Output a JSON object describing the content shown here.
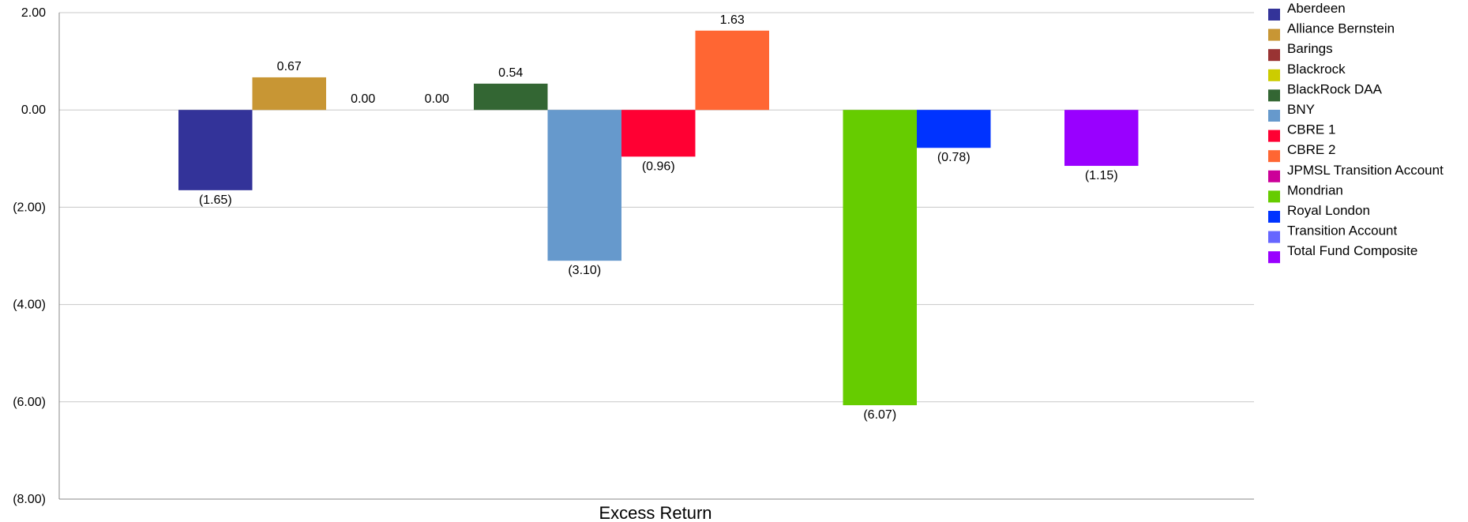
{
  "chart_data": {
    "type": "bar",
    "title": "",
    "xlabel": "Excess Return",
    "ylabel": "",
    "ylim": [
      -8,
      2
    ],
    "y_ticks": [
      2,
      0,
      -2,
      -4,
      -6,
      -8
    ],
    "y_tick_labels": [
      "2.00",
      "0.00",
      "(2.00)",
      "(4.00)",
      "(6.00)",
      "(8.00)"
    ],
    "grid": true,
    "legend_position": "right",
    "categories": [
      "Excess Return"
    ],
    "series": [
      {
        "name": "Aberdeen",
        "value": -1.65,
        "label": "(1.65)",
        "color": "#333399"
      },
      {
        "name": "Alliance Bernstein",
        "value": 0.67,
        "label": "0.67",
        "color": "#C89634"
      },
      {
        "name": "Barings",
        "value": 0.0,
        "label": "0.00",
        "color": "#993333"
      },
      {
        "name": "Blackrock",
        "value": 0.0,
        "label": "0.00",
        "color": "#CCCC00"
      },
      {
        "name": "BlackRock DAA",
        "value": 0.54,
        "label": "0.54",
        "color": "#336633"
      },
      {
        "name": "BNY",
        "value": -3.1,
        "label": "(3.10)",
        "color": "#6699CC"
      },
      {
        "name": "CBRE 1",
        "value": -0.96,
        "label": "(0.96)",
        "color": "#FF0033"
      },
      {
        "name": "CBRE 2",
        "value": 1.63,
        "label": "1.63",
        "color": "#FF6633"
      },
      {
        "name": "JPMSL Transition Account",
        "value": null,
        "label": "",
        "color": "#CC0099"
      },
      {
        "name": "Mondrian",
        "value": -6.07,
        "label": "(6.07)",
        "color": "#66CC00"
      },
      {
        "name": "Royal London",
        "value": -0.78,
        "label": "(0.78)",
        "color": "#0033FF"
      },
      {
        "name": "Transition Account",
        "value": null,
        "label": "",
        "color": "#6666FF"
      },
      {
        "name": "Total Fund Composite",
        "value": -1.15,
        "label": "(1.15)",
        "color": "#9900FF"
      }
    ]
  }
}
